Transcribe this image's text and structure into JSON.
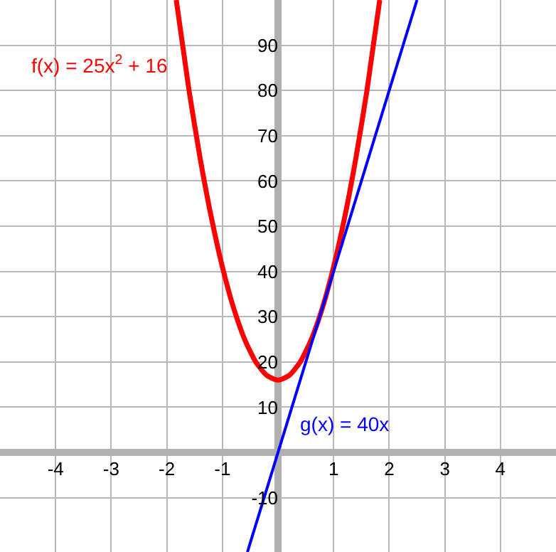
{
  "chart_data": {
    "type": "line",
    "x": [
      -1.83,
      -1.6,
      -1.4,
      -1.2,
      -1.0,
      -0.8,
      -0.6,
      -0.4,
      -0.2,
      0.0,
      0.2,
      0.4,
      0.6,
      0.8,
      1.0,
      1.2,
      1.4,
      1.6,
      1.83
    ],
    "series": [
      {
        "name": "f(x) = 25x$^{2}$ + 16",
        "color": "#ff0000",
        "values": [
          100,
          80,
          65,
          52,
          41,
          32,
          25,
          20,
          17,
          16,
          17,
          20,
          25,
          32,
          41,
          52,
          65,
          80,
          100
        ]
      },
      {
        "name": "g(x) = 40x",
        "type": "line",
        "color": "#0000ff",
        "x": [
          -0.55,
          2.5
        ],
        "values": [
          -22,
          100
        ]
      }
    ],
    "xlim": [
      -5,
      5
    ],
    "ylim": [
      -22,
      100
    ],
    "xticks": [
      -4,
      -3,
      -2,
      -1,
      1,
      2,
      3,
      4
    ],
    "yticks": [
      -10,
      10,
      20,
      30,
      40,
      50,
      60,
      70,
      80,
      90
    ],
    "grid": true,
    "legend": false
  }
}
